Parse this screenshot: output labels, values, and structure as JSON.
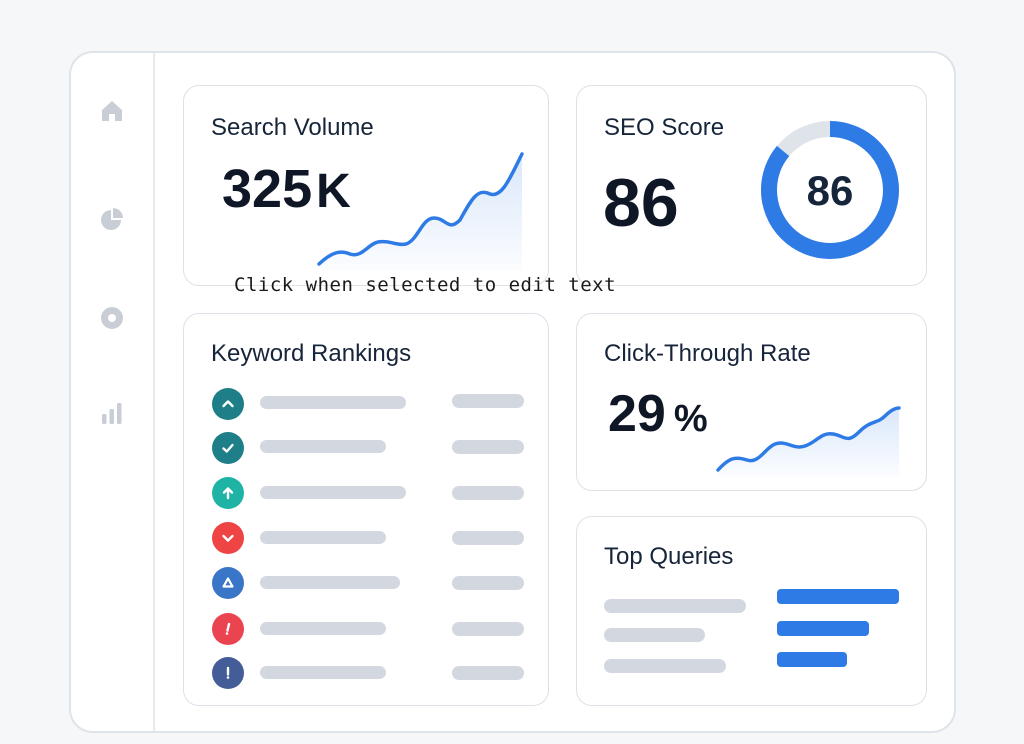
{
  "sidebar": {
    "items": [
      {
        "icon": "home-icon"
      },
      {
        "icon": "pie-chart-icon"
      },
      {
        "icon": "target-icon"
      },
      {
        "icon": "bar-chart-icon"
      }
    ]
  },
  "search_volume": {
    "title": "Search Volume",
    "value": "325",
    "unit": "K",
    "line_color": "#2f7be6"
  },
  "seo_score": {
    "title": "SEO Score",
    "value": "86",
    "gauge_value": "86",
    "gauge_fraction": 0.86,
    "gauge_color": "#2f7be6",
    "gauge_track_color": "#dfe3ea"
  },
  "keyword_rankings": {
    "title": "Keyword Rankings",
    "rows": [
      {
        "icon": "chevron-up-icon",
        "color": "#1f7f88"
      },
      {
        "icon": "check-icon",
        "color": "#1f7f88"
      },
      {
        "icon": "arrow-up-icon",
        "color": "#1fb3a6"
      },
      {
        "icon": "chevron-down-icon",
        "color": "#ef4444"
      },
      {
        "icon": "triangle-icon",
        "color": "#3a76c8"
      },
      {
        "icon": "exclamation-icon",
        "color": "#ea4450"
      },
      {
        "icon": "exclamation-icon",
        "color": "#445d99"
      }
    ]
  },
  "ctr": {
    "title": "Click-Through Rate",
    "value": "29",
    "unit": "%",
    "line_color": "#2f7be6"
  },
  "top_queries": {
    "title": "Top Queries",
    "bar_color": "#2f7be6"
  },
  "overlay": {
    "text": "Click when selected to edit text"
  }
}
